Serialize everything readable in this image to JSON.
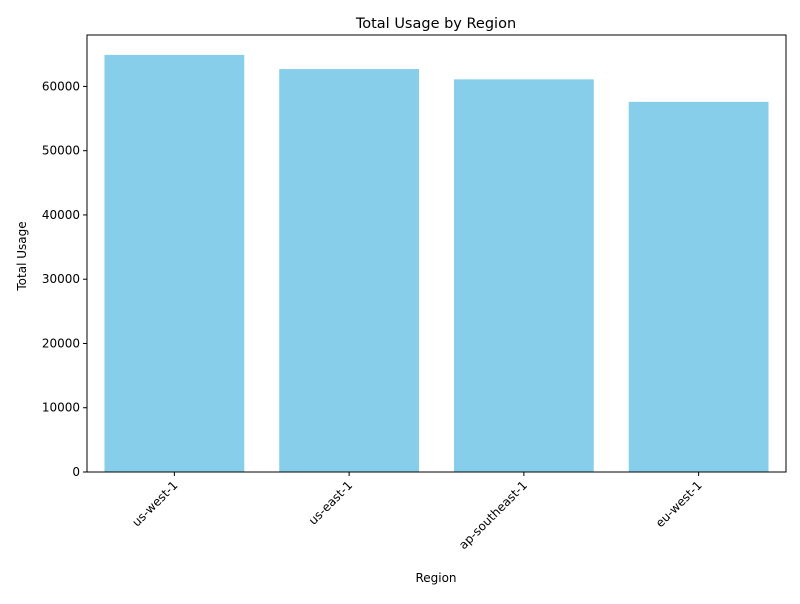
{
  "chart_data": {
    "type": "bar",
    "title": "Total Usage by Region",
    "xlabel": "Region",
    "ylabel": "Total Usage",
    "categories": [
      "us-west-1",
      "us-east-1",
      "ap-southeast-1",
      "eu-west-1"
    ],
    "values": [
      64900,
      62700,
      61100,
      57600
    ],
    "ylim": [
      0,
      68000
    ],
    "yticks": [
      0,
      10000,
      20000,
      30000,
      40000,
      50000,
      60000
    ],
    "grid": false,
    "legend": "none",
    "bar_color": "#87ceeb",
    "axis_color": "#000000",
    "xtick_rotation_deg": 45
  }
}
